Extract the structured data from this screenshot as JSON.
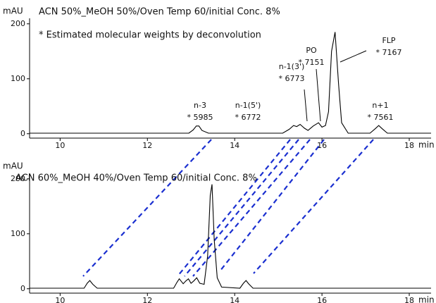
{
  "chart_data": [
    {
      "type": "line",
      "title": "ACN 50%_MeOH 50%/Oven Temp 60/initial Conc. 8%",
      "subtitle": "* Estimated molecular weights by deconvolution",
      "xlabel": "min",
      "ylabel": "mAU",
      "x": [
        9.3,
        12.95,
        13.05,
        13.12,
        13.18,
        13.25,
        13.4,
        15.1,
        15.25,
        15.35,
        15.42,
        15.5,
        15.6,
        15.68,
        15.8,
        15.92,
        16.0,
        16.08,
        16.15,
        16.22,
        16.3,
        16.38,
        16.45,
        16.6,
        17.1,
        17.22,
        17.3,
        17.38,
        17.5,
        18.5
      ],
      "series": [
        {
          "color": "#000000",
          "values": [
            1,
            1,
            7,
            14,
            14,
            6,
            1,
            1,
            8,
            15,
            13,
            17,
            10,
            6,
            14,
            20,
            12,
            15,
            40,
            150,
            185,
            90,
            20,
            1,
            1,
            9,
            15,
            9,
            1,
            1
          ]
        }
      ],
      "xlim": [
        9.3,
        18.5
      ],
      "ylim": [
        -8,
        210
      ],
      "xticks": [
        10,
        12,
        14,
        16,
        18
      ],
      "yticks": [
        0,
        100,
        200
      ],
      "annotations": [
        {
          "label": "n-3",
          "mw": "* 5985"
        },
        {
          "label": "n-1(5')",
          "mw": "* 6772"
        },
        {
          "label": "n-1(3')",
          "mw": "* 6773"
        },
        {
          "label": "PO",
          "mw": "* 7151"
        },
        {
          "label": "FLP",
          "mw": "* 7167"
        },
        {
          "label": "n+1",
          "mw": "* 7561"
        }
      ]
    },
    {
      "type": "line",
      "title": "ACN 60%_MeOH 40%/Oven Temp 60/initial Conc. 8%",
      "xlabel": "min",
      "ylabel": "mAU",
      "x": [
        9.3,
        10.55,
        10.62,
        10.68,
        10.75,
        10.85,
        12.6,
        12.68,
        12.73,
        12.82,
        12.88,
        12.94,
        13.0,
        13.06,
        13.13,
        13.2,
        13.3,
        13.38,
        13.44,
        13.48,
        13.53,
        13.6,
        13.7,
        14.12,
        14.2,
        14.26,
        14.32,
        14.42,
        18.5
      ],
      "series": [
        {
          "color": "#000000",
          "values": [
            1,
            1,
            10,
            15,
            8,
            1,
            1,
            12,
            18,
            9,
            14,
            18,
            10,
            14,
            20,
            10,
            8,
            60,
            170,
            190,
            90,
            20,
            3,
            1,
            10,
            15,
            9,
            1,
            1
          ]
        }
      ],
      "xlim": [
        9.3,
        18.5
      ],
      "ylim": [
        -8,
        210
      ],
      "xticks": [
        10,
        12,
        14,
        16,
        18
      ],
      "yticks": [
        0,
        100,
        200
      ]
    }
  ]
}
